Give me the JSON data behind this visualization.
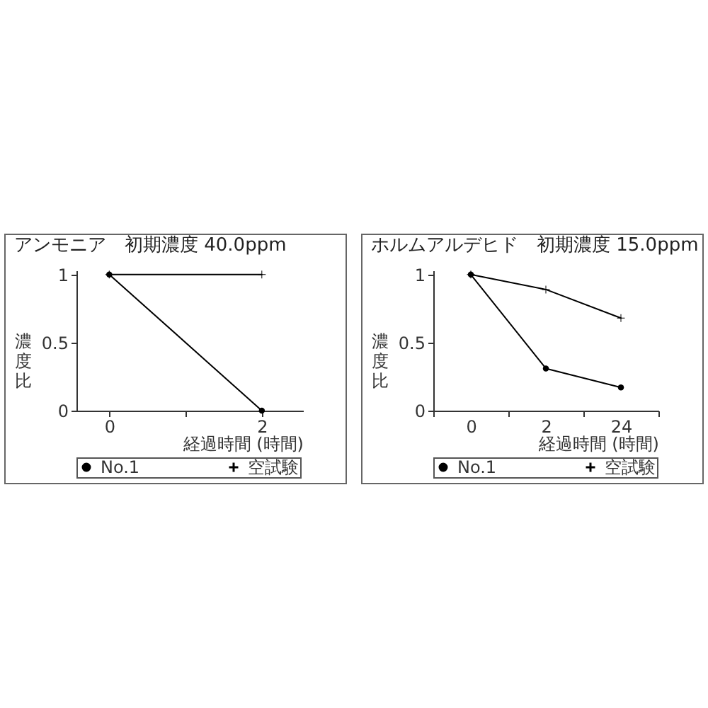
{
  "chart_data": [
    {
      "type": "line",
      "title": "アンモニア　初期濃度 40.0ppm",
      "xlabel": "経過時間 (時間)",
      "ylabel": "濃度比",
      "x": [
        0,
        2
      ],
      "xlim": [
        -0.43,
        2.54
      ],
      "xticks": [
        0,
        {
          "value": 1,
          "label": null
        },
        2
      ],
      "ylim": [
        0,
        1.03
      ],
      "yticks": [
        0,
        0.5,
        1
      ],
      "legend": "bottom",
      "series": [
        {
          "name": "No.1",
          "color": "#000000",
          "marker": "circle",
          "values": [
            1,
            0
          ]
        },
        {
          "name": "空試験",
          "color": "#000000",
          "marker": "cross",
          "values": [
            1,
            1
          ]
        }
      ]
    },
    {
      "type": "line",
      "title": "ホルムアルデヒド　初期濃度 15.0ppm",
      "xlabel": "経過時間 (時間)",
      "ylabel": "濃度比",
      "categories": [
        "0",
        "2",
        "24"
      ],
      "ylim": [
        0,
        1.03
      ],
      "yticks": [
        0,
        0.5,
        1
      ],
      "legend": "bottom",
      "series": [
        {
          "name": "No.1",
          "color": "#000000",
          "marker": "circle",
          "values": [
            1,
            0.31,
            0.17
          ]
        },
        {
          "name": "空試験",
          "color": "#000000",
          "marker": "cross",
          "values": [
            1,
            0.89,
            0.68
          ]
        }
      ]
    }
  ]
}
